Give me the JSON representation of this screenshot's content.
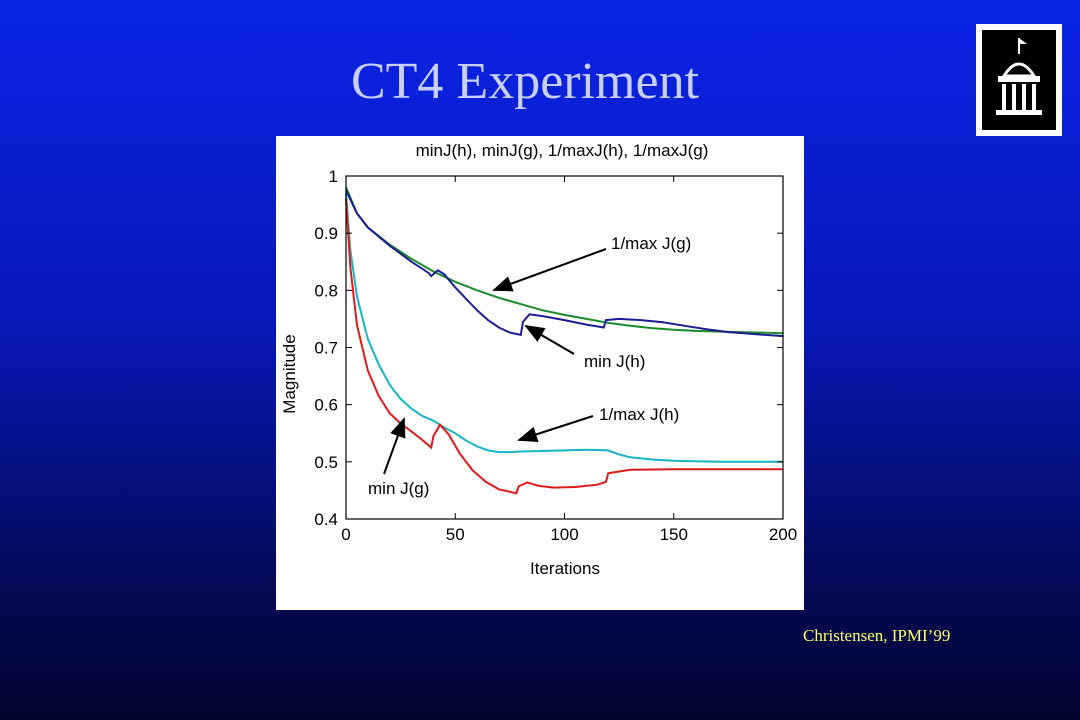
{
  "slide": {
    "title": "CT4 Experiment",
    "credit": "Christensen, IPMI’99",
    "logo_icon": "university-building-logo"
  },
  "chart_data": {
    "type": "line",
    "title": "minJ(h), minJ(g), 1/maxJ(h), 1/maxJ(g)",
    "xlabel": "Iterations",
    "ylabel": "Magnitude",
    "xlim": [
      0,
      200
    ],
    "ylim": [
      0.4,
      1.0
    ],
    "xticks": [
      0,
      50,
      100,
      150,
      200
    ],
    "yticks": [
      0.4,
      0.5,
      0.6,
      0.7,
      0.8,
      0.9,
      1
    ],
    "grid": false,
    "series": [
      {
        "name": "1/max J(g)",
        "color": "#1a8c2a",
        "x": [
          0,
          5,
          10,
          20,
          30,
          40,
          50,
          60,
          70,
          80,
          90,
          100,
          110,
          120,
          130,
          140,
          150,
          160,
          170,
          180,
          190,
          200
        ],
        "y": [
          0.98,
          0.935,
          0.91,
          0.88,
          0.855,
          0.833,
          0.815,
          0.8,
          0.787,
          0.776,
          0.765,
          0.757,
          0.75,
          0.743,
          0.738,
          0.734,
          0.731,
          0.729,
          0.728,
          0.727,
          0.726,
          0.725
        ]
      },
      {
        "name": "min J(h)",
        "color": "#1c1c96",
        "x": [
          0,
          5,
          10,
          20,
          30,
          38,
          39,
          42,
          45,
          50,
          55,
          60,
          65,
          70,
          75,
          80,
          81,
          84,
          90,
          100,
          110,
          118,
          119,
          125,
          135,
          145,
          155,
          165,
          175,
          185,
          200
        ],
        "y": [
          0.975,
          0.935,
          0.91,
          0.878,
          0.85,
          0.83,
          0.825,
          0.835,
          0.828,
          0.805,
          0.785,
          0.765,
          0.748,
          0.735,
          0.726,
          0.722,
          0.745,
          0.758,
          0.755,
          0.748,
          0.74,
          0.735,
          0.748,
          0.75,
          0.748,
          0.744,
          0.738,
          0.732,
          0.727,
          0.724,
          0.72
        ]
      },
      {
        "name": "1/max J(h)",
        "color": "#18b4c8",
        "x": [
          0,
          2,
          5,
          10,
          15,
          20,
          25,
          30,
          35,
          40,
          45,
          50,
          55,
          60,
          65,
          70,
          75,
          80,
          90,
          100,
          110,
          120,
          125,
          130,
          140,
          150,
          160,
          170,
          180,
          190,
          200
        ],
        "y": [
          0.97,
          0.87,
          0.79,
          0.715,
          0.67,
          0.635,
          0.61,
          0.593,
          0.58,
          0.572,
          0.56,
          0.55,
          0.537,
          0.527,
          0.52,
          0.517,
          0.517,
          0.518,
          0.519,
          0.52,
          0.521,
          0.52,
          0.513,
          0.508,
          0.504,
          0.502,
          0.501,
          0.5,
          0.5,
          0.5,
          0.5
        ]
      },
      {
        "name": "min J(g)",
        "color": "#e01a1a",
        "x": [
          0,
          2,
          5,
          10,
          15,
          20,
          25,
          30,
          35,
          39,
          40,
          43,
          47,
          52,
          58,
          64,
          70,
          78,
          79,
          83,
          88,
          95,
          105,
          115,
          119,
          120,
          130,
          150,
          170,
          200
        ],
        "y": [
          0.96,
          0.84,
          0.74,
          0.66,
          0.615,
          0.585,
          0.567,
          0.553,
          0.538,
          0.525,
          0.545,
          0.565,
          0.548,
          0.515,
          0.485,
          0.465,
          0.452,
          0.445,
          0.457,
          0.464,
          0.458,
          0.455,
          0.456,
          0.46,
          0.465,
          0.48,
          0.486,
          0.487,
          0.487,
          0.487
        ]
      }
    ],
    "annotations": [
      {
        "text": "1/max J(g)",
        "series": "1/max J(g)"
      },
      {
        "text": "min J(h)",
        "series": "min J(h)"
      },
      {
        "text": "1/max J(h)",
        "series": "1/max J(h)"
      },
      {
        "text": "min J(g)",
        "series": "min J(g)"
      }
    ]
  }
}
